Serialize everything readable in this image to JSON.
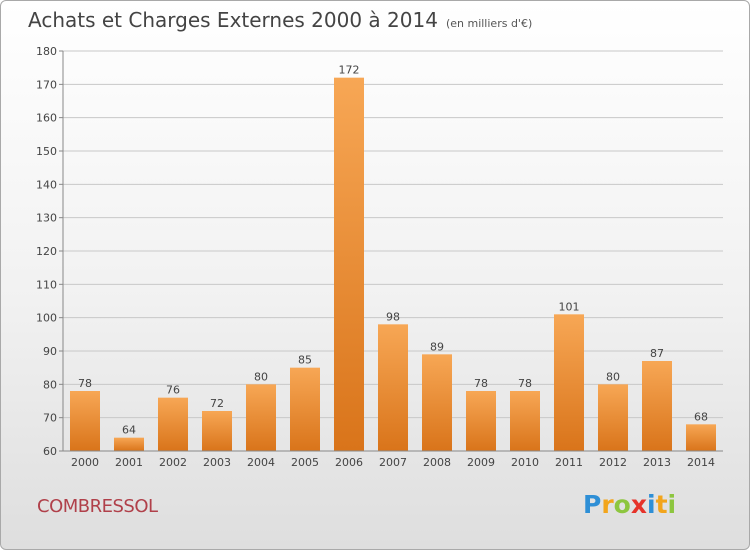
{
  "header": {
    "title": "Achats et Charges Externes 2000 à 2014",
    "subtitle": "(en milliers d'€)"
  },
  "footer": {
    "commune": "COMBRESSOL",
    "logo_text": "Proxiti",
    "logo_colors": [
      "#2e8fd6",
      "#f2a51c",
      "#8dc63f",
      "#e6332a",
      "#2e8fd6",
      "#f2a51c",
      "#8dc63f"
    ]
  },
  "colors": {
    "bar_light": "#f7a755",
    "bar_dark": "#d9741a",
    "grid": "#c8c8c8",
    "axis": "#888888",
    "text": "#444444"
  },
  "chart_data": {
    "type": "bar",
    "title": "Achats et Charges Externes 2000 à 2014",
    "subtitle": "(en milliers d'€)",
    "categories": [
      "2000",
      "2001",
      "2002",
      "2003",
      "2004",
      "2005",
      "2006",
      "2007",
      "2008",
      "2009",
      "2010",
      "2011",
      "2012",
      "2013",
      "2014"
    ],
    "values": [
      78,
      64,
      76,
      72,
      80,
      85,
      172,
      98,
      89,
      78,
      78,
      101,
      80,
      87,
      68
    ],
    "ylim": [
      60,
      180
    ],
    "yticks": [
      60,
      70,
      80,
      90,
      100,
      110,
      120,
      130,
      140,
      150,
      160,
      170,
      180
    ],
    "grid": true
  }
}
